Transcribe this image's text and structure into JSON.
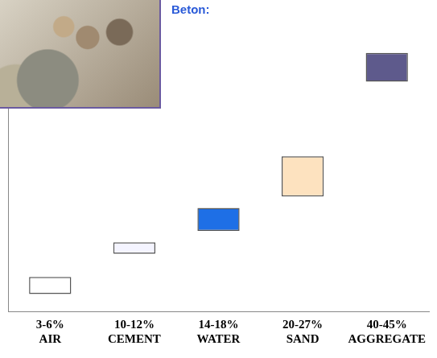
{
  "chart_data": {
    "type": "bar",
    "title": "Beton:",
    "categories": [
      "AIR",
      "CEMENT",
      "WATER",
      "SAND",
      "AGGREGATE"
    ],
    "values": [
      [
        3,
        6
      ],
      [
        10,
        12
      ],
      [
        14,
        18
      ],
      [
        20,
        27
      ],
      [
        40,
        45
      ]
    ],
    "value_labels": [
      "3-6%",
      "10-12%",
      "14-18%",
      "20-27%",
      "40-45%"
    ],
    "colors": [
      "#ffffff",
      "#f4f4ff",
      "#1e6fe6",
      "#fde2bf",
      "#5e5a8c"
    ],
    "ylim": [
      0,
      50
    ],
    "grid": false,
    "tick_labels": "x"
  }
}
